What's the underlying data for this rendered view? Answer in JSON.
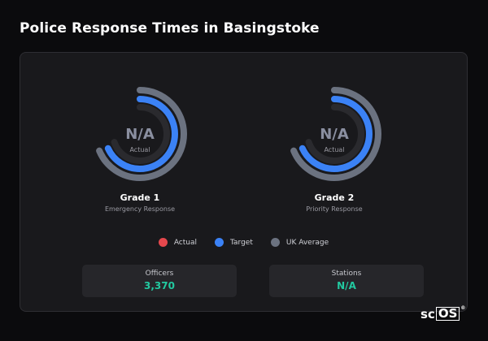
{
  "page": {
    "title": "Police Response Times in Basingstoke"
  },
  "gauges": [
    {
      "title": "Grade 1",
      "subtitle": "Emergency Response",
      "value": "N/A",
      "caption": "Actual"
    },
    {
      "title": "Grade 2",
      "subtitle": "Priority Response",
      "value": "N/A",
      "caption": "Actual"
    }
  ],
  "legend": [
    {
      "label": "Actual",
      "color": "#e5484d"
    },
    {
      "label": "Target",
      "color": "#3b82f6"
    },
    {
      "label": "UK Average",
      "color": "#6b7280"
    }
  ],
  "stats": [
    {
      "label": "Officers",
      "value": "3,370",
      "color": "#22c9a0"
    },
    {
      "label": "Stations",
      "value": "N/A",
      "color": "#22c9a0"
    }
  ],
  "colors": {
    "target_ring": "#3b82f6",
    "uk_average_ring": "#6b7280",
    "actual_track": "#2a2a2e",
    "value_text": "#8a8fa0"
  },
  "brand": {
    "prefix": "sc",
    "boxed": "OS",
    "mark": "®"
  }
}
